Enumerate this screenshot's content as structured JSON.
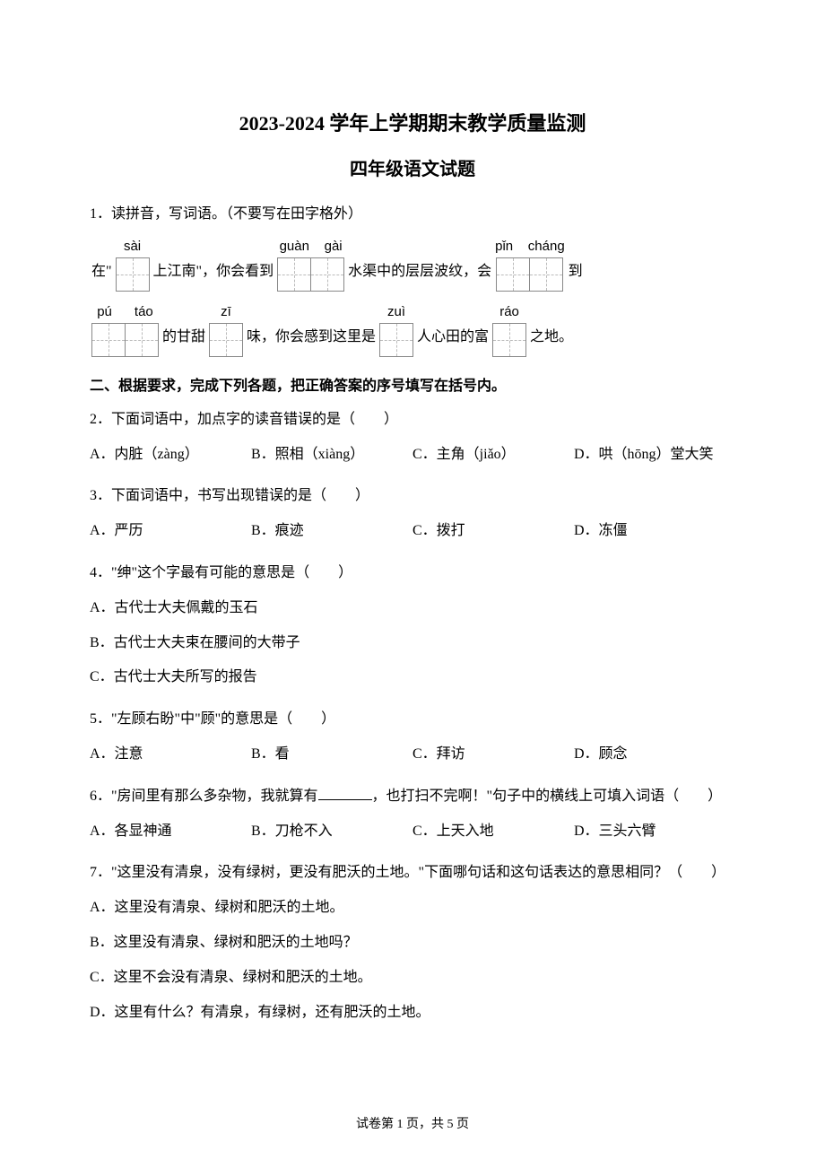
{
  "title_main": "2023-2024 学年上学期期末教学质量监测",
  "title_sub": "四年级语文试题",
  "q1": {
    "prompt": "1．读拼音，写词语。（不要写在田字格外）",
    "row1": {
      "pre": "在\"",
      "p1": {
        "pinyin": "sài",
        "boxes": 1
      },
      "t1": "上江南\"，你会看到",
      "p2": {
        "pinyin": "guàn    gài",
        "boxes": 2
      },
      "t2": "水渠中的层层波纹，会",
      "p3": {
        "pinyin": "pǐn    cháng",
        "boxes": 2
      },
      "t3": "到"
    },
    "row2": {
      "p1": {
        "pinyin": "pú      táo",
        "boxes": 2
      },
      "t1": "的甘甜",
      "p2": {
        "pinyin": "zī",
        "boxes": 1
      },
      "t2": "味，你会感到这里是",
      "p3": {
        "pinyin": "zuì",
        "boxes": 1
      },
      "t3": "人心田的富",
      "p4": {
        "pinyin": "ráo",
        "boxes": 1
      },
      "t4": "之地。"
    }
  },
  "section2_title": "二、根据要求，完成下列各题，把正确答案的序号填写在括号内。",
  "q2": {
    "text": "2．下面词语中，加点字的读音错误的是（　　）",
    "a": "A．内脏（zàng）",
    "b": "B．照相（xiàng）",
    "c": "C．主角（jiǎo）",
    "d": "D．哄（hōng）堂大笑"
  },
  "q3": {
    "text": "3．下面词语中，书写出现错误的是（　　）",
    "a": "A．严历",
    "b": "B．痕迹",
    "c": "C．拨打",
    "d": "D．冻僵"
  },
  "q4": {
    "text": "4．\"绅\"这个字最有可能的意思是（　　）",
    "a": "A．古代士大夫佩戴的玉石",
    "b": "B．古代士大夫束在腰间的大带子",
    "c": "C．古代士大夫所写的报告"
  },
  "q5": {
    "text": "5．\"左顾右盼\"中\"顾\"的意思是（　　）",
    "a": "A．注意",
    "b": "B．看",
    "c": "C．拜访",
    "d": "D．顾念"
  },
  "q6": {
    "text_pre": "6．\"房间里有那么多杂物，我就算有",
    "text_post": "，也打扫不完啊！\"句子中的横线上可填入词语（　　）",
    "a": "A．各显神通",
    "b": "B．刀枪不入",
    "c": "C．上天入地",
    "d": "D．三头六臂"
  },
  "q7": {
    "text": "7．\"这里没有清泉，没有绿树，更没有肥沃的土地。\"下面哪句话和这句话表达的意思相同？（　　）",
    "a": "A．这里没有清泉、绿树和肥沃的土地。",
    "b": "B．这里没有清泉、绿树和肥沃的土地吗？",
    "c": "C．这里不会没有清泉、绿树和肥沃的土地。",
    "d": "D．这里有什么？有清泉，有绿树，还有肥沃的土地。"
  },
  "footer": "试卷第 1 页，共 5 页"
}
